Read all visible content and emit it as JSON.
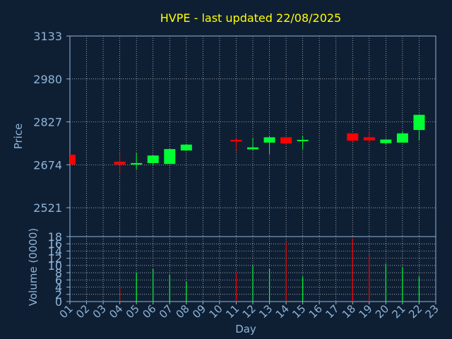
{
  "chart_data": {
    "type": "candlestick",
    "title": "HVPE - last updated 22/08/2025",
    "price_ylabel": "Price",
    "volume_ylabel": "Volume (0000)",
    "xlabel": "Day",
    "x_ticks": [
      "01",
      "02",
      "03",
      "04",
      "05",
      "06",
      "07",
      "08",
      "09",
      "10",
      "11",
      "12",
      "13",
      "14",
      "15",
      "16",
      "17",
      "18",
      "19",
      "20",
      "21",
      "22",
      "23"
    ],
    "price_ticks": [
      3133,
      2980,
      2827,
      2674,
      2521
    ],
    "price_ylim": [
      2418,
      3133
    ],
    "volume_ticks": [
      18,
      16,
      14,
      12,
      10,
      8,
      6,
      4,
      2,
      0
    ],
    "volume_ylim": [
      0,
      18
    ],
    "grid": true,
    "colors": {
      "background": "#0f1f33",
      "axis": "#8fb4d8",
      "grid": "#ffffff",
      "title": "#ffff00",
      "up": "#00ff33",
      "down": "#ff0000"
    },
    "candles": [
      {
        "day": 1,
        "open": 2710,
        "high": 2710,
        "low": 2675,
        "close": 2675
      },
      {
        "day": 4,
        "open": 2685,
        "high": 2714,
        "low": 2640,
        "close": 2675
      },
      {
        "day": 5,
        "open": 2675,
        "high": 2716,
        "low": 2658,
        "close": 2680
      },
      {
        "day": 6,
        "open": 2680,
        "high": 2708,
        "low": 2672,
        "close": 2707
      },
      {
        "day": 7,
        "open": 2677,
        "high": 2733,
        "low": 2677,
        "close": 2730
      },
      {
        "day": 8,
        "open": 2725,
        "high": 2748,
        "low": 2725,
        "close": 2746
      },
      {
        "day": 11,
        "open": 2763,
        "high": 2769,
        "low": 2726,
        "close": 2757
      },
      {
        "day": 12,
        "open": 2729,
        "high": 2770,
        "low": 2726,
        "close": 2736
      },
      {
        "day": 13,
        "open": 2753,
        "high": 2775,
        "low": 2712,
        "close": 2772
      },
      {
        "day": 14,
        "open": 2772,
        "high": 2772,
        "low": 2746,
        "close": 2750
      },
      {
        "day": 15,
        "open": 2759,
        "high": 2776,
        "low": 2728,
        "close": 2763
      },
      {
        "day": 18,
        "open": 2786,
        "high": 2786,
        "low": 2756,
        "close": 2760
      },
      {
        "day": 19,
        "open": 2772,
        "high": 2794,
        "low": 2752,
        "close": 2761
      },
      {
        "day": 20,
        "open": 2751,
        "high": 2765,
        "low": 2745,
        "close": 2764
      },
      {
        "day": 21,
        "open": 2753,
        "high": 2794,
        "low": 2753,
        "close": 2786
      },
      {
        "day": 22,
        "open": 2798,
        "high": 2852,
        "low": 2760,
        "close": 2852
      }
    ],
    "volume": [
      {
        "day": 4,
        "value": 4,
        "dir": "down"
      },
      {
        "day": 5,
        "value": 8,
        "dir": "up"
      },
      {
        "day": 6,
        "value": 9,
        "dir": "up"
      },
      {
        "day": 7,
        "value": 7.5,
        "dir": "up"
      },
      {
        "day": 8,
        "value": 5.5,
        "dir": "up"
      },
      {
        "day": 11,
        "value": 8,
        "dir": "down"
      },
      {
        "day": 12,
        "value": 10,
        "dir": "up"
      },
      {
        "day": 13,
        "value": 9,
        "dir": "up"
      },
      {
        "day": 14,
        "value": 16.5,
        "dir": "down"
      },
      {
        "day": 15,
        "value": 7,
        "dir": "up"
      },
      {
        "day": 18,
        "value": 17.5,
        "dir": "down"
      },
      {
        "day": 19,
        "value": 13,
        "dir": "down"
      },
      {
        "day": 20,
        "value": 10.5,
        "dir": "up"
      },
      {
        "day": 21,
        "value": 9.5,
        "dir": "up"
      },
      {
        "day": 22,
        "value": 7,
        "dir": "up"
      }
    ]
  }
}
